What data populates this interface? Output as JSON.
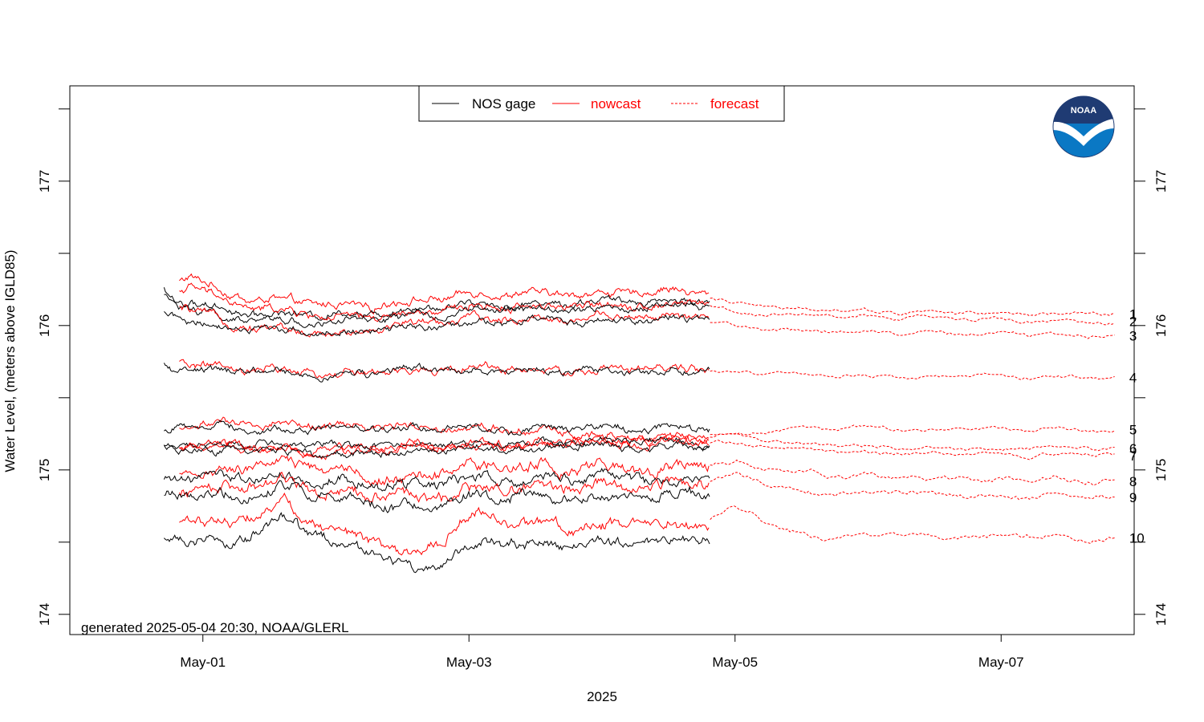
{
  "chart_data": {
    "type": "line",
    "xlabel": "2025",
    "ylabel": "Water Level, (meters above IGLD85)",
    "footnote": "generated 2025-05-04 20:30, NOAA/GLERL",
    "logo_text": "NOAA",
    "x_unit": "days (fractional) in 2025",
    "x_range": [
      "2025-04-30T00:00",
      "2025-05-08T00:00"
    ],
    "x_ticks": [
      {
        "date": "2025-05-01",
        "label": "May-01"
      },
      {
        "date": "2025-05-03",
        "label": "May-03"
      },
      {
        "date": "2025-05-05",
        "label": "May-05"
      },
      {
        "date": "2025-05-07",
        "label": "May-07"
      }
    ],
    "ylim": [
      173.86,
      177.66
    ],
    "y_ticks_labeled": [
      174,
      175,
      176,
      177
    ],
    "y_ticks_minor": [
      174.5,
      175.5,
      176.5,
      177.5
    ],
    "nowcast_start": "2025-04-30T19:45",
    "forecast_start": "2025-05-04T19:30",
    "series_end": "2025-05-07T20:30",
    "gauge_start": "2025-04-30T17:00",
    "legend": [
      {
        "label": "NOS gage",
        "color": "#000000",
        "style": "solid"
      },
      {
        "label": "nowcast",
        "color": "#ff0000",
        "style": "solid"
      },
      {
        "label": "forecast",
        "color": "#ff0000",
        "style": "dashed"
      }
    ],
    "colors": {
      "gage": "#000000",
      "nowcast": "#ff0000",
      "forecast": "#ff0000",
      "logo_top": "#1f3b73",
      "logo_bottom": "#0a78c4"
    },
    "stations": [
      {
        "label": "1",
        "gage": [
          [
            0.0,
            176.12
          ],
          [
            0.15,
            176.2
          ],
          [
            0.3,
            176.33
          ],
          [
            0.4,
            176.1
          ],
          [
            0.5,
            176.05
          ],
          [
            0.6,
            176.33
          ],
          [
            0.8,
            176.18
          ],
          [
            1.2,
            176.1
          ],
          [
            2.0,
            176.08
          ],
          [
            3.0,
            176.15
          ],
          [
            4.0,
            176.16
          ],
          [
            4.8,
            176.17
          ]
        ],
        "nowcast": [
          [
            0.75,
            176.28
          ],
          [
            0.9,
            176.36
          ],
          [
            1.2,
            176.2
          ],
          [
            2.0,
            176.14
          ],
          [
            3.0,
            176.2
          ],
          [
            4.0,
            176.22
          ],
          [
            4.8,
            176.24
          ]
        ],
        "forecast": [
          [
            4.8,
            176.2
          ],
          [
            5.0,
            176.15
          ],
          [
            5.5,
            176.13
          ],
          [
            6.0,
            176.1
          ],
          [
            7.0,
            176.08
          ],
          [
            7.5,
            176.08
          ]
        ]
      },
      {
        "label": "2",
        "gage": [
          [
            0.0,
            176.05
          ],
          [
            0.15,
            176.12
          ],
          [
            0.3,
            176.25
          ],
          [
            0.4,
            176.05
          ],
          [
            0.5,
            175.98
          ],
          [
            0.6,
            176.27
          ],
          [
            0.8,
            176.15
          ],
          [
            1.2,
            176.05
          ],
          [
            2.0,
            176.02
          ],
          [
            3.0,
            176.1
          ],
          [
            4.0,
            176.12
          ],
          [
            4.8,
            176.14
          ]
        ],
        "nowcast": [
          [
            0.75,
            176.22
          ],
          [
            0.9,
            176.28
          ],
          [
            1.2,
            176.14
          ],
          [
            2.0,
            176.05
          ],
          [
            3.0,
            176.12
          ],
          [
            4.0,
            176.14
          ],
          [
            4.8,
            176.16
          ]
        ],
        "forecast": [
          [
            4.8,
            176.14
          ],
          [
            5.0,
            176.1
          ],
          [
            5.5,
            176.08
          ],
          [
            6.0,
            176.06
          ],
          [
            7.0,
            176.04
          ],
          [
            7.5,
            176.03
          ]
        ]
      },
      {
        "label": "3",
        "gage": [
          [
            0.0,
            176.0
          ],
          [
            0.15,
            176.02
          ],
          [
            0.3,
            176.2
          ],
          [
            0.4,
            175.98
          ],
          [
            0.5,
            175.92
          ],
          [
            0.6,
            176.15
          ],
          [
            0.8,
            176.05
          ],
          [
            1.2,
            175.98
          ],
          [
            2.0,
            175.94
          ],
          [
            3.0,
            176.02
          ],
          [
            4.0,
            176.05
          ],
          [
            4.8,
            176.04
          ]
        ],
        "nowcast": [
          [
            0.75,
            176.14
          ],
          [
            0.9,
            176.12
          ],
          [
            1.2,
            176.0
          ],
          [
            2.0,
            175.95
          ],
          [
            3.0,
            176.04
          ],
          [
            4.0,
            176.06
          ],
          [
            4.8,
            176.05
          ]
        ],
        "forecast": [
          [
            4.8,
            176.03
          ],
          [
            5.0,
            176.0
          ],
          [
            5.5,
            175.97
          ],
          [
            6.0,
            175.96
          ],
          [
            7.0,
            175.93
          ],
          [
            7.5,
            175.93
          ]
        ]
      },
      {
        "label": "4",
        "gage": [
          [
            0.0,
            175.65
          ],
          [
            0.15,
            175.72
          ],
          [
            0.3,
            175.84
          ],
          [
            0.4,
            175.65
          ],
          [
            0.5,
            175.58
          ],
          [
            0.6,
            175.76
          ],
          [
            0.8,
            175.7
          ],
          [
            1.2,
            175.67
          ],
          [
            2.0,
            175.66
          ],
          [
            3.0,
            175.7
          ],
          [
            4.0,
            175.68
          ],
          [
            4.8,
            175.69
          ]
        ],
        "nowcast": [
          [
            0.75,
            175.76
          ],
          [
            0.9,
            175.74
          ],
          [
            1.2,
            175.69
          ],
          [
            2.0,
            175.67
          ],
          [
            3.0,
            175.71
          ],
          [
            4.0,
            175.69
          ],
          [
            4.8,
            175.7
          ]
        ],
        "forecast": [
          [
            4.8,
            175.69
          ],
          [
            5.0,
            175.67
          ],
          [
            5.5,
            175.66
          ],
          [
            6.0,
            175.65
          ],
          [
            7.0,
            175.65
          ],
          [
            7.5,
            175.64
          ]
        ]
      },
      {
        "label": "5",
        "gage": [
          [
            0.0,
            175.35
          ],
          [
            0.15,
            175.34
          ],
          [
            0.3,
            175.39
          ],
          [
            0.4,
            175.32
          ],
          [
            0.5,
            175.26
          ],
          [
            0.6,
            175.22
          ],
          [
            0.8,
            175.3
          ],
          [
            1.2,
            175.29
          ],
          [
            2.0,
            175.28
          ],
          [
            3.0,
            175.29
          ],
          [
            4.0,
            175.29
          ],
          [
            4.8,
            175.27
          ]
        ],
        "nowcast": [
          [
            0.75,
            175.28
          ],
          [
            0.9,
            175.3
          ],
          [
            1.2,
            175.31
          ],
          [
            2.0,
            175.33
          ],
          [
            3.0,
            175.3
          ],
          [
            4.0,
            175.25
          ],
          [
            4.8,
            175.23
          ]
        ],
        "forecast": [
          [
            4.8,
            175.24
          ],
          [
            5.0,
            175.25
          ],
          [
            5.5,
            175.28
          ],
          [
            6.0,
            175.29
          ],
          [
            7.0,
            175.28
          ],
          [
            7.5,
            175.28
          ]
        ]
      },
      {
        "label": "6",
        "gage": [
          [
            0.0,
            175.15
          ],
          [
            0.15,
            175.1
          ],
          [
            0.3,
            175.15
          ],
          [
            0.4,
            175.12
          ],
          [
            0.5,
            175.14
          ],
          [
            0.6,
            175.16
          ],
          [
            0.8,
            175.17
          ],
          [
            1.2,
            175.17
          ],
          [
            2.0,
            175.16
          ],
          [
            3.0,
            175.18
          ],
          [
            4.0,
            175.2
          ],
          [
            4.8,
            175.19
          ]
        ],
        "nowcast": [
          [
            0.75,
            175.14
          ],
          [
            0.9,
            175.16
          ],
          [
            1.2,
            175.17
          ],
          [
            2.0,
            175.16
          ],
          [
            3.0,
            175.18
          ],
          [
            4.0,
            175.2
          ],
          [
            4.8,
            175.21
          ]
        ],
        "forecast": [
          [
            4.8,
            175.25
          ],
          [
            5.0,
            175.24
          ],
          [
            5.5,
            175.17
          ],
          [
            6.0,
            175.16
          ],
          [
            7.0,
            175.15
          ],
          [
            7.5,
            175.15
          ]
        ]
      },
      {
        "label": "7",
        "gage": [
          [
            0.0,
            175.08
          ],
          [
            0.15,
            175.04
          ],
          [
            0.3,
            175.06
          ],
          [
            0.4,
            175.08
          ],
          [
            0.5,
            175.12
          ],
          [
            0.6,
            175.15
          ],
          [
            0.8,
            175.15
          ],
          [
            1.2,
            175.14
          ],
          [
            2.0,
            175.1
          ],
          [
            3.0,
            175.15
          ],
          [
            4.0,
            175.16
          ],
          [
            4.8,
            175.18
          ]
        ],
        "nowcast": [
          [
            0.75,
            175.13
          ],
          [
            0.9,
            175.16
          ],
          [
            1.2,
            175.17
          ],
          [
            2.0,
            175.12
          ],
          [
            3.0,
            175.16
          ],
          [
            4.0,
            175.18
          ],
          [
            4.8,
            175.19
          ]
        ],
        "forecast": [
          [
            4.8,
            175.19
          ],
          [
            5.0,
            175.18
          ],
          [
            5.5,
            175.14
          ],
          [
            6.0,
            175.12
          ],
          [
            7.0,
            175.1
          ],
          [
            7.5,
            175.1
          ]
        ]
      },
      {
        "label": "8",
        "gage": [
          [
            0.0,
            174.85
          ],
          [
            0.15,
            174.78
          ],
          [
            0.3,
            174.82
          ],
          [
            0.5,
            174.88
          ],
          [
            0.8,
            174.95
          ],
          [
            1.2,
            174.94
          ],
          [
            1.6,
            175.0
          ],
          [
            2.0,
            174.92
          ],
          [
            2.3,
            174.88
          ],
          [
            2.6,
            174.86
          ],
          [
            3.0,
            174.92
          ],
          [
            4.0,
            174.94
          ],
          [
            4.8,
            174.95
          ]
        ],
        "nowcast": [
          [
            0.5,
            174.87
          ],
          [
            0.8,
            174.96
          ],
          [
            1.2,
            174.99
          ],
          [
            1.6,
            175.05
          ],
          [
            2.0,
            175.0
          ],
          [
            2.3,
            174.95
          ],
          [
            2.6,
            174.94
          ],
          [
            3.0,
            175.0
          ],
          [
            4.0,
            175.02
          ],
          [
            4.8,
            175.03
          ]
        ],
        "forecast": [
          [
            4.8,
            175.05
          ],
          [
            5.0,
            175.05
          ],
          [
            5.5,
            174.98
          ],
          [
            6.0,
            174.95
          ],
          [
            7.0,
            174.93
          ],
          [
            7.5,
            174.92
          ]
        ]
      },
      {
        "label": "9",
        "gage": [
          [
            0.0,
            174.72
          ],
          [
            0.15,
            174.68
          ],
          [
            0.3,
            174.72
          ],
          [
            0.5,
            174.78
          ],
          [
            0.8,
            174.85
          ],
          [
            1.2,
            174.83
          ],
          [
            1.6,
            174.9
          ],
          [
            2.0,
            174.8
          ],
          [
            2.3,
            174.76
          ],
          [
            2.6,
            174.74
          ],
          [
            3.0,
            174.8
          ],
          [
            4.0,
            174.83
          ],
          [
            4.8,
            174.84
          ]
        ],
        "nowcast": [
          [
            0.5,
            174.74
          ],
          [
            0.8,
            174.88
          ],
          [
            1.2,
            174.9
          ],
          [
            1.6,
            174.95
          ],
          [
            2.0,
            174.88
          ],
          [
            2.3,
            174.84
          ],
          [
            2.6,
            174.8
          ],
          [
            3.0,
            174.87
          ],
          [
            4.0,
            174.89
          ],
          [
            4.8,
            174.9
          ]
        ],
        "forecast": [
          [
            4.8,
            174.92
          ],
          [
            5.0,
            174.96
          ],
          [
            5.5,
            174.86
          ],
          [
            6.0,
            174.84
          ],
          [
            7.0,
            174.82
          ],
          [
            7.5,
            174.81
          ]
        ]
      },
      {
        "label": "10",
        "gage": [
          [
            0.0,
            174.48
          ],
          [
            0.15,
            174.32
          ],
          [
            0.3,
            174.3
          ],
          [
            0.5,
            174.38
          ],
          [
            0.8,
            174.55
          ],
          [
            1.2,
            174.48
          ],
          [
            1.6,
            174.68
          ],
          [
            2.0,
            174.5
          ],
          [
            2.3,
            174.46
          ],
          [
            2.6,
            174.3
          ],
          [
            3.0,
            174.5
          ],
          [
            3.5,
            174.5
          ],
          [
            4.0,
            174.48
          ],
          [
            4.8,
            174.52
          ]
        ],
        "nowcast": [
          [
            0.5,
            174.4
          ],
          [
            0.8,
            174.68
          ],
          [
            1.2,
            174.62
          ],
          [
            1.6,
            174.8
          ],
          [
            2.0,
            174.58
          ],
          [
            2.3,
            174.55
          ],
          [
            2.6,
            174.42
          ],
          [
            3.0,
            174.68
          ],
          [
            3.5,
            174.62
          ],
          [
            4.0,
            174.62
          ],
          [
            4.8,
            174.6
          ]
        ],
        "forecast": [
          [
            4.8,
            174.65
          ],
          [
            5.0,
            174.75
          ],
          [
            5.5,
            174.55
          ],
          [
            6.0,
            174.55
          ],
          [
            7.0,
            174.55
          ],
          [
            7.5,
            174.53
          ]
        ]
      }
    ]
  }
}
